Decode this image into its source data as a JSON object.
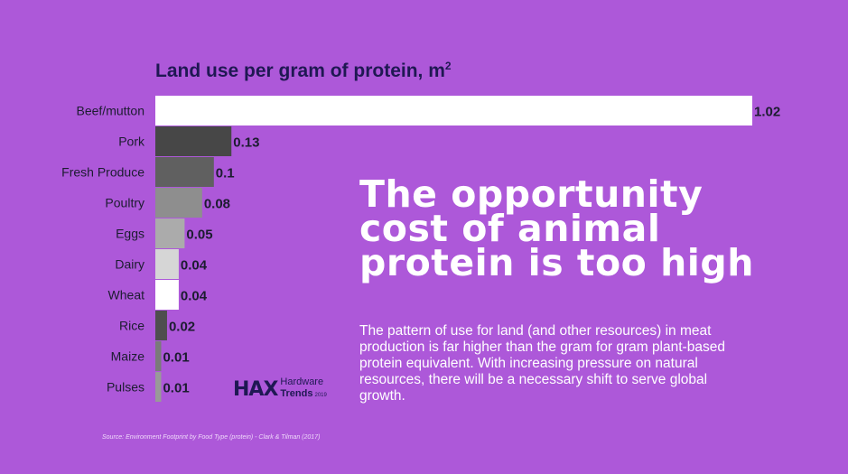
{
  "chart_data": {
    "type": "bar",
    "orientation": "horizontal",
    "title": "Land use per gram of protein, m",
    "title_superscript": "2",
    "categories": [
      "Beef/mutton",
      "Pork",
      "Fresh Produce",
      "Poultry",
      "Eggs",
      "Dairy",
      "Wheat",
      "Rice",
      "Maize",
      "Pulses"
    ],
    "values": [
      1.02,
      0.13,
      0.1,
      0.08,
      0.05,
      0.04,
      0.04,
      0.02,
      0.01,
      0.01
    ],
    "value_labels": [
      "1.02",
      "0.13",
      "0.1",
      "0.08",
      "0.05",
      "0.04",
      "0.04",
      "0.02",
      "0.01",
      "0.01"
    ],
    "bar_colors": [
      "#ffffff",
      "#474747",
      "#606060",
      "#8e8e8e",
      "#ababab",
      "#d6d6d6",
      "#ffffff",
      "#4e4e4e",
      "#7a7a7a",
      "#999999"
    ],
    "xlim": [
      0,
      1.02
    ],
    "grid": false,
    "legend": "none"
  },
  "headline": "The opportunity cost of animal protein is too high",
  "body_text": "The pattern of use for land (and other resources) in meat production is far higher than the gram for gram plant-based protein equivalent. With increasing pressure on natural resources, there will be a necessary shift to serve global growth.",
  "logo": {
    "mark": "HAX",
    "line1": "Hardware",
    "line2": "Trends",
    "year": "2019"
  },
  "source": "Source: Environment Footprint by Food Type (protein) - Clark & Tilman (2017)",
  "colors": {
    "background": "#ad58d9",
    "title": "#1f1853",
    "text_dark": "#1c1c30",
    "text_light": "#ffffff"
  }
}
